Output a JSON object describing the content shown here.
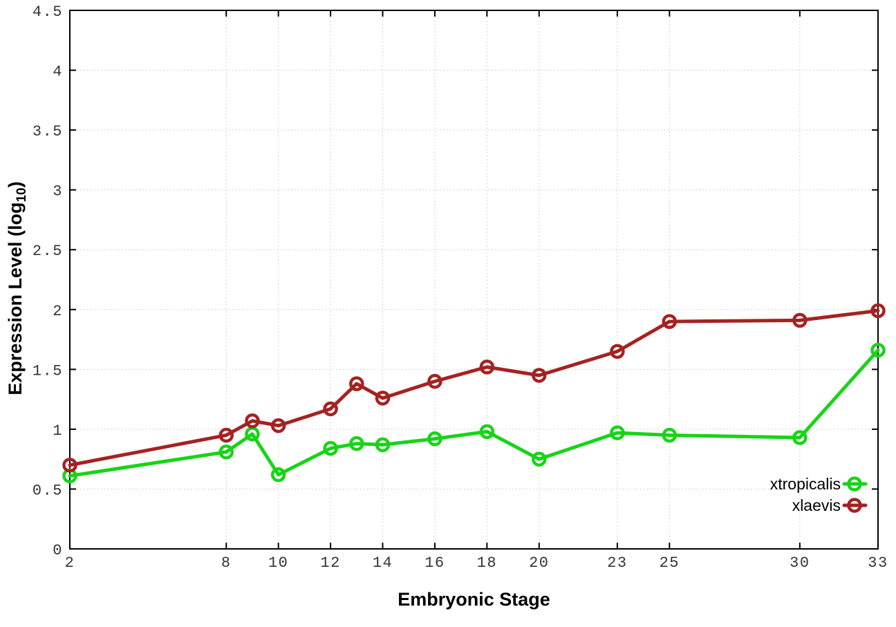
{
  "figure": {
    "background": "#ffffff",
    "border_color": "#000000",
    "grid_color": "#c4c4c4",
    "tick_label_color": "#333333",
    "xlabel": "Embryonic Stage",
    "ylabel": "Expression Level (log10)",
    "ylabel_parts": {
      "prefix": "Expression Level (log",
      "sub": "10",
      "suffix": ")"
    }
  },
  "chart_data": {
    "type": "line",
    "title": "",
    "xlabel": "Embryonic Stage",
    "ylabel": "Expression Level (log10)",
    "x": [
      2,
      8,
      9,
      10,
      12,
      13,
      14,
      16,
      18,
      20,
      23,
      25,
      30,
      33
    ],
    "series": [
      {
        "name": "xtropicalis",
        "color": "#17d417",
        "values": [
          0.61,
          0.81,
          0.96,
          0.62,
          0.84,
          0.88,
          0.87,
          0.92,
          0.98,
          0.75,
          0.97,
          0.95,
          0.93,
          1.66
        ]
      },
      {
        "name": "xlaevis",
        "color": "#a52222",
        "values": [
          0.7,
          0.95,
          1.07,
          1.03,
          1.17,
          1.38,
          1.26,
          1.4,
          1.52,
          1.45,
          1.65,
          1.9,
          1.91,
          1.99
        ]
      }
    ],
    "xlim": [
      2,
      33
    ],
    "ylim": [
      0,
      4.5
    ],
    "x_tick_values": [
      2,
      8,
      10,
      12,
      14,
      16,
      18,
      20,
      23,
      25,
      30,
      33
    ],
    "x_tick_labels": [
      "2",
      "8",
      "10",
      "12",
      "14",
      "16",
      "18",
      "20",
      "23",
      "25",
      "30",
      "33"
    ],
    "y_tick_values": [
      0,
      0.5,
      1,
      1.5,
      2,
      2.5,
      3,
      3.5,
      4,
      4.5
    ],
    "y_tick_labels": [
      "0",
      "0.5",
      "1",
      "1.5",
      "2",
      "2.5",
      "3",
      "3.5",
      "4",
      "4.5"
    ],
    "grid": "dotted",
    "marker": "open-circle",
    "legend": {
      "position": "inside-bottom-right",
      "entries": [
        "xtropicalis",
        "xlaevis"
      ]
    }
  }
}
